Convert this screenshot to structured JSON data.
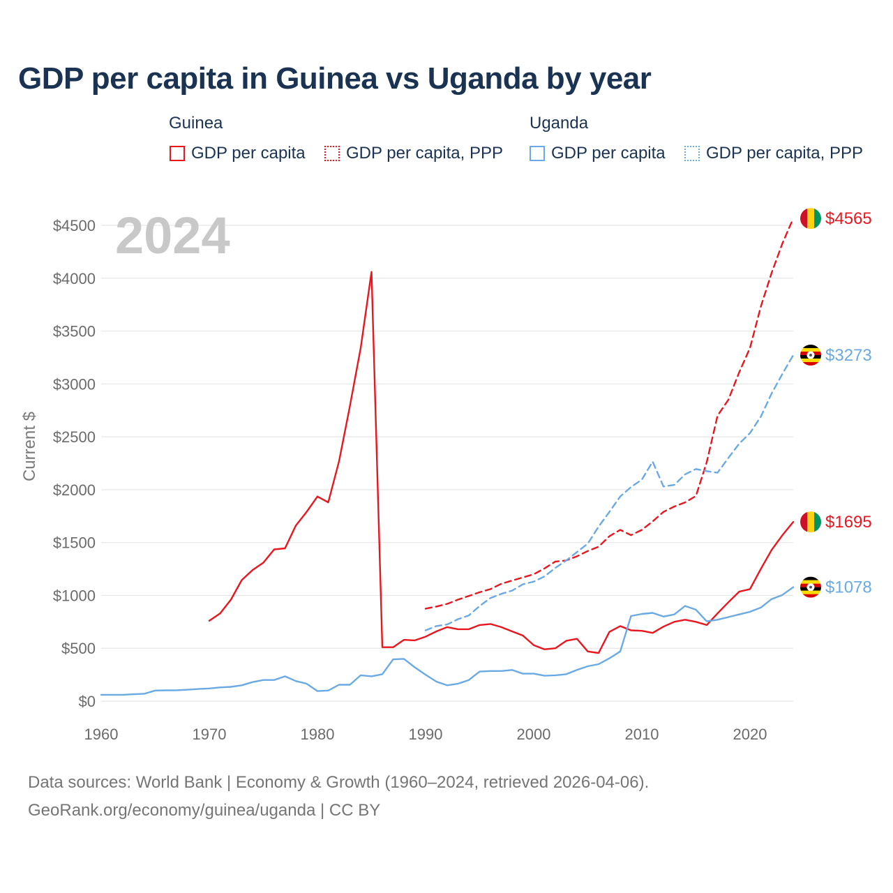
{
  "title": "GDP per capita in Guinea vs Uganda by year",
  "legend": {
    "groups": [
      {
        "country": "Guinea",
        "items": [
          {
            "label": "GDP per capita",
            "style": "solid",
            "color": "#e8171f"
          },
          {
            "label": "GDP per capita, PPP",
            "style": "dotted",
            "color": "#e8171f"
          }
        ]
      },
      {
        "country": "Uganda",
        "items": [
          {
            "label": "GDP per capita",
            "style": "solid",
            "color": "#6aaae4"
          },
          {
            "label": "GDP per capita, PPP",
            "style": "dotted",
            "color": "#6aaae4"
          }
        ]
      }
    ]
  },
  "year_watermark": "2024",
  "footer": {
    "sources": "Data sources: World Bank | Economy & Growth (1960–2024, retrieved 2026-04-06).",
    "credit": "GeoRank.org/economy/guinea/uganda | CC BY"
  },
  "chart_data": {
    "type": "line",
    "title": "GDP per capita in Guinea vs Uganda by year",
    "xlabel": "",
    "ylabel": "Current $",
    "xlim": [
      1960,
      2024
    ],
    "ylim": [
      0,
      4500
    ],
    "grid": true,
    "legend_position": "top",
    "x_ticks": [
      1960,
      1970,
      1980,
      1990,
      2000,
      2010,
      2020
    ],
    "y_ticks": [
      0,
      500,
      1000,
      1500,
      2000,
      2500,
      3000,
      3500,
      4000,
      4500
    ],
    "y_tick_labels": [
      "$0",
      "$500",
      "$1000",
      "$1500",
      "$2000",
      "$2500",
      "$3000",
      "$3500",
      "$4000",
      "$4500"
    ],
    "series": [
      {
        "name": "Guinea GDP per capita",
        "color": "#e8171f",
        "dash": "solid",
        "start_year": 1970,
        "values": [
          760,
          830,
          960,
          1145,
          1240,
          1310,
          1435,
          1445,
          1660,
          1790,
          1935,
          1880,
          2270,
          2790,
          3340,
          4060,
          510,
          510,
          580,
          575,
          610,
          660,
          700,
          680,
          680,
          720,
          730,
          700,
          660,
          620,
          530,
          490,
          500,
          570,
          590,
          470,
          455,
          655,
          710,
          670,
          665,
          645,
          705,
          750,
          770,
          750,
          720,
          830,
          935,
          1035,
          1060,
          1250,
          1430,
          1570,
          1695
        ],
        "end_label": "$1695"
      },
      {
        "name": "Guinea GDP per capita, PPP",
        "color": "#e8171f",
        "dash": "dashed",
        "start_year": 1990,
        "values": [
          875,
          895,
          920,
          960,
          995,
          1030,
          1060,
          1110,
          1140,
          1170,
          1200,
          1255,
          1320,
          1330,
          1370,
          1420,
          1460,
          1560,
          1620,
          1570,
          1620,
          1700,
          1790,
          1840,
          1880,
          1940,
          2260,
          2700,
          2850,
          3110,
          3340,
          3730,
          4050,
          4330,
          4565
        ],
        "end_label": "$4565"
      },
      {
        "name": "Uganda GDP per capita",
        "color": "#6aaae4",
        "dash": "solid",
        "start_year": 1960,
        "values": [
          60,
          60,
          60,
          65,
          70,
          100,
          102,
          103,
          108,
          115,
          120,
          130,
          135,
          150,
          180,
          200,
          200,
          235,
          190,
          165,
          95,
          100,
          155,
          155,
          245,
          235,
          255,
          395,
          400,
          320,
          250,
          185,
          150,
          165,
          200,
          280,
          285,
          285,
          295,
          260,
          260,
          240,
          245,
          255,
          295,
          330,
          350,
          405,
          470,
          805,
          825,
          835,
          800,
          820,
          900,
          865,
          755,
          770,
          795,
          820,
          845,
          885,
          965,
          1005,
          1078
        ],
        "end_label": "$1078"
      },
      {
        "name": "Uganda GDP per capita, PPP",
        "color": "#6aaae4",
        "dash": "dashed",
        "start_year": 1990,
        "values": [
          670,
          710,
          725,
          775,
          810,
          900,
          975,
          1015,
          1045,
          1105,
          1130,
          1180,
          1260,
          1330,
          1410,
          1490,
          1650,
          1790,
          1935,
          2025,
          2095,
          2265,
          2030,
          2045,
          2145,
          2195,
          2175,
          2160,
          2300,
          2435,
          2535,
          2690,
          2910,
          3095,
          3273
        ],
        "end_label": "$3273"
      }
    ]
  }
}
